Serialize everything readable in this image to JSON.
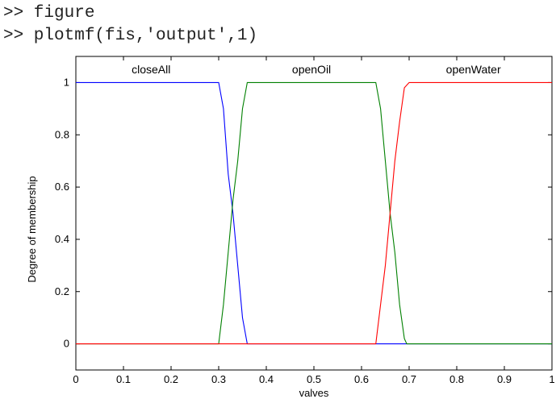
{
  "console": {
    "lines": [
      ">> figure",
      ">> plotmf(fis,'output',1)"
    ]
  },
  "chart_data": {
    "type": "line",
    "title": "",
    "xlabel": "valves",
    "ylabel": "Degree of membership",
    "xlim": [
      0,
      1
    ],
    "ylim": [
      -0.1,
      1.1
    ],
    "x_ticks": [
      "0",
      "0.1",
      "0.2",
      "0.3",
      "0.4",
      "0.5",
      "0.6",
      "0.7",
      "0.8",
      "0.9",
      "1"
    ],
    "y_ticks": [
      "0",
      "0.2",
      "0.4",
      "0.6",
      "0.8",
      "1"
    ],
    "grid": false,
    "legend": "none",
    "series": [
      {
        "name": "closeAll",
        "color": "#0000ff",
        "x": [
          0,
          0.3,
          0.31,
          0.32,
          0.33,
          0.34,
          0.35,
          0.36,
          1
        ],
        "y": [
          1,
          1,
          0.9,
          0.65,
          0.5,
          0.3,
          0.1,
          0,
          0
        ]
      },
      {
        "name": "openOil",
        "color": "#008000",
        "x": [
          0,
          0.3,
          0.31,
          0.32,
          0.33,
          0.34,
          0.35,
          0.36,
          0.63,
          0.64,
          0.65,
          0.66,
          0.67,
          0.68,
          0.69,
          0.695,
          1
        ],
        "y": [
          0,
          0,
          0.15,
          0.35,
          0.55,
          0.7,
          0.9,
          1,
          1,
          0.9,
          0.7,
          0.5,
          0.35,
          0.15,
          0.02,
          0,
          0
        ]
      },
      {
        "name": "openWater",
        "color": "#ff0000",
        "x": [
          0,
          0.63,
          0.64,
          0.65,
          0.66,
          0.67,
          0.68,
          0.69,
          0.7,
          1
        ],
        "y": [
          0,
          0,
          0.15,
          0.3,
          0.5,
          0.7,
          0.85,
          0.98,
          1,
          1
        ]
      }
    ]
  }
}
